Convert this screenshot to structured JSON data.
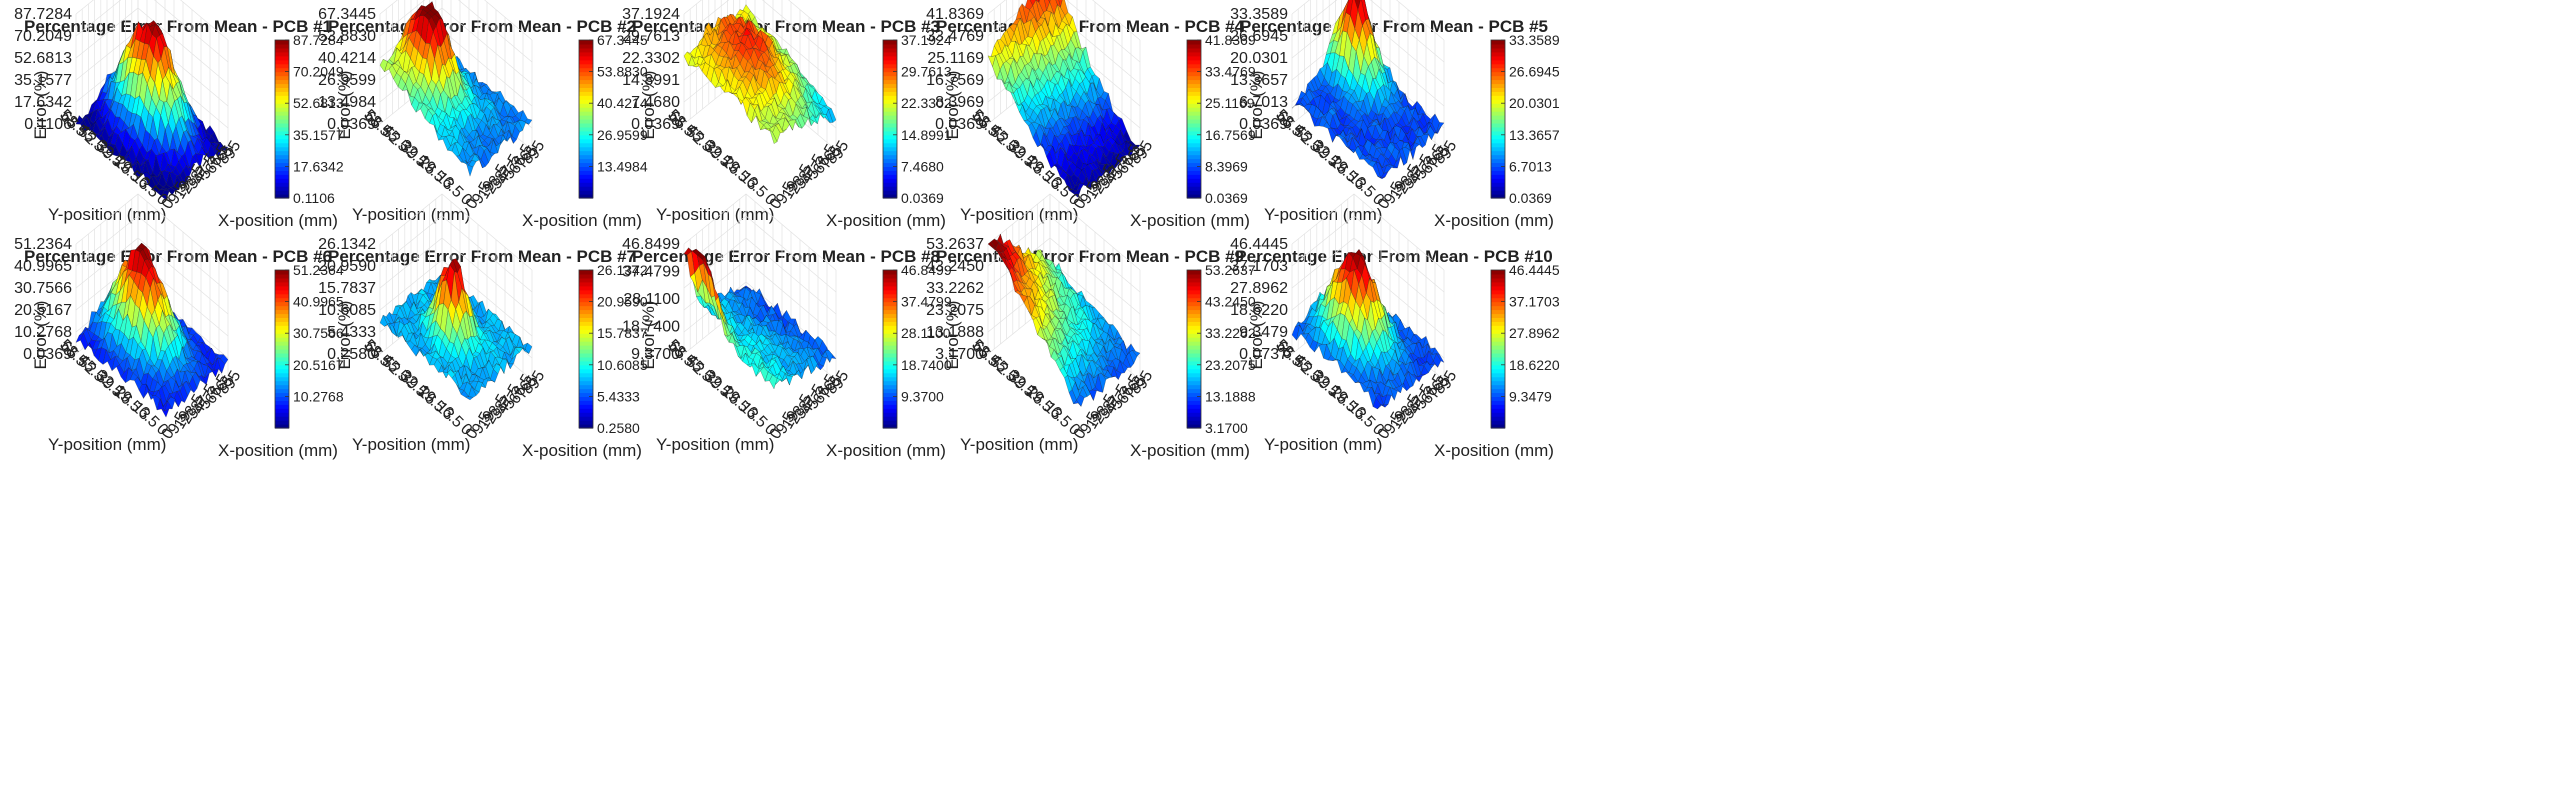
{
  "figure": {
    "chart_data": [
      {
        "type": "surface",
        "title": "Percentage Error From Mean - PCB #1",
        "xlabel": "X-position (mm)",
        "ylabel": "Y-position (mm)",
        "zlabel": "Error (%)",
        "zlim": [
          0.1106,
          87.7284
        ],
        "ztick_labels": [
          "0.1106",
          "17.6342",
          "35.1577",
          "52.6813",
          "70.2049",
          "87.7284"
        ],
        "colorbar_ticks": [
          "0.1106",
          "17.6342",
          "35.1577",
          "52.6813",
          "70.2049",
          "87.7284"
        ],
        "colormap": "jet",
        "peak_region": "center",
        "grid": true
      },
      {
        "type": "surface",
        "title": "Percentage Error From Mean - PCB #2",
        "xlabel": "X-position (mm)",
        "ylabel": "Y-position (mm)",
        "zlabel": "Error (%)",
        "zlim": [
          0.0369,
          67.3445
        ],
        "ztick_labels": [
          "0.0369",
          "13.4984",
          "26.9599",
          "40.4214",
          "53.8830",
          "67.3445"
        ],
        "colorbar_ticks": [
          "13.4984",
          "26.9599",
          "40.4214",
          "53.8830",
          "67.3445"
        ],
        "colormap": "jet",
        "peak_region": "back",
        "grid": true
      },
      {
        "type": "surface",
        "title": "Percentage Error From Mean - PCB #3",
        "xlabel": "X-position (mm)",
        "ylabel": "Y-position (mm)",
        "zlabel": "Error (%)",
        "zlim": [
          0.0369,
          37.1924
        ],
        "ztick_labels": [
          "0.0369",
          "7.4680",
          "14.8991",
          "22.3302",
          "29.7613",
          "37.1924"
        ],
        "colorbar_ticks": [
          "0.0369",
          "7.4680",
          "14.8991",
          "22.3302",
          "29.7613",
          "37.1924"
        ],
        "colormap": "jet",
        "peak_region": "broad",
        "grid": true
      },
      {
        "type": "surface",
        "title": "Percentage Error From Mean - PCB #4",
        "xlabel": "X-position (mm)",
        "ylabel": "Y-position (mm)",
        "zlabel": "Error (%)",
        "zlim": [
          0.0369,
          41.8369
        ],
        "ztick_labels": [
          "0.0369",
          "8.3969",
          "16.7569",
          "25.1169",
          "33.4769",
          "41.8369"
        ],
        "colorbar_ticks": [
          "0.0369",
          "8.3969",
          "16.7569",
          "25.1169",
          "33.4769",
          "41.8369"
        ],
        "colormap": "jet",
        "peak_region": "back",
        "grid": true
      },
      {
        "type": "surface",
        "title": "Percentage Error From Mean - PCB #5",
        "xlabel": "X-position (mm)",
        "ylabel": "Y-position (mm)",
        "zlabel": "Error (%)",
        "zlim": [
          0.0369,
          33.3589
        ],
        "ztick_labels": [
          "0.0369",
          "6.7013",
          "13.3657",
          "20.0301",
          "26.6945",
          "33.3589"
        ],
        "colorbar_ticks": [
          "0.0369",
          "6.7013",
          "13.3657",
          "20.0301",
          "26.6945",
          "33.3589"
        ],
        "colormap": "jet",
        "peak_region": "back-right",
        "grid": true
      },
      {
        "type": "surface",
        "title": "Percentage Error From Mean - PCB #6",
        "xlabel": "X-position (mm)",
        "ylabel": "Y-position (mm)",
        "zlabel": "Error (%)",
        "zlim": [
          0.0369,
          51.2364
        ],
        "ztick_labels": [
          "0.0369",
          "10.2768",
          "20.5167",
          "30.7566",
          "40.9965",
          "51.2364"
        ],
        "colorbar_ticks": [
          "10.2768",
          "20.5167",
          "30.7566",
          "40.9965",
          "51.2364"
        ],
        "colormap": "jet",
        "peak_region": "center",
        "grid": true
      },
      {
        "type": "surface",
        "title": "Percentage Error From Mean - PCB #7",
        "xlabel": "X-position (mm)",
        "ylabel": "Y-position (mm)",
        "zlabel": "Error (%)",
        "zlim": [
          0.258,
          26.1342
        ],
        "ztick_labels": [
          "0.2580",
          "5.4333",
          "10.6085",
          "15.7837",
          "20.9590",
          "26.1342"
        ],
        "colorbar_ticks": [
          "0.2580",
          "5.4333",
          "10.6085",
          "15.7837",
          "20.9590",
          "26.1342"
        ],
        "colormap": "jet",
        "peak_region": "center",
        "grid": true
      },
      {
        "type": "surface",
        "title": "Percentage Error From Mean - PCB #8",
        "xlabel": "X-position (mm)",
        "ylabel": "Y-position (mm)",
        "zlabel": "Error (%)",
        "zlim": [
          0.03,
          46.8499
        ],
        "ztick_labels": [
          "9.3700",
          "18.7400",
          "28.1100",
          "37.4799",
          "46.8499"
        ],
        "colorbar_ticks": [
          "9.3700",
          "18.7400",
          "28.1100",
          "37.4799",
          "46.8499"
        ],
        "colormap": "jet",
        "peak_region": "left",
        "grid": true
      },
      {
        "type": "surface",
        "title": "Percentage Error From Mean - PCB #9",
        "xlabel": "X-position (mm)",
        "ylabel": "Y-position (mm)",
        "zlabel": "Error (%)",
        "zlim": [
          3.17,
          53.2637
        ],
        "ztick_labels": [
          "3.1700",
          "13.1888",
          "23.2075",
          "33.2262",
          "43.2450",
          "53.2637"
        ],
        "colorbar_ticks": [
          "3.1700",
          "13.1888",
          "23.2075",
          "33.2262",
          "43.2450",
          "53.2637"
        ],
        "colormap": "jet",
        "peak_region": "left",
        "grid": true
      },
      {
        "type": "surface",
        "title": "Percentage Error From Mean - PCB #10",
        "xlabel": "X-position (mm)",
        "ylabel": "Y-position (mm)",
        "zlabel": "Error (%)",
        "zlim": [
          0.0737,
          46.4445
        ],
        "ztick_labels": [
          "0.0737",
          "9.3479",
          "18.6220",
          "27.8962",
          "37.1703",
          "46.4445"
        ],
        "colorbar_ticks": [
          "9.3479",
          "18.6220",
          "27.8962",
          "37.1703",
          "46.4445"
        ],
        "colormap": "jet",
        "peak_region": "center",
        "grid": true
      }
    ],
    "x_ticks": [
      "0",
      "9.5",
      "19",
      "28.5",
      "38",
      "47.5",
      "57",
      "66.5",
      "76",
      "85",
      "95"
    ],
    "y_ticks": [
      "0",
      "6.5",
      "13",
      "19.5",
      "26",
      "32.5",
      "39",
      "45.5",
      "52",
      "58.5",
      "65"
    ]
  }
}
